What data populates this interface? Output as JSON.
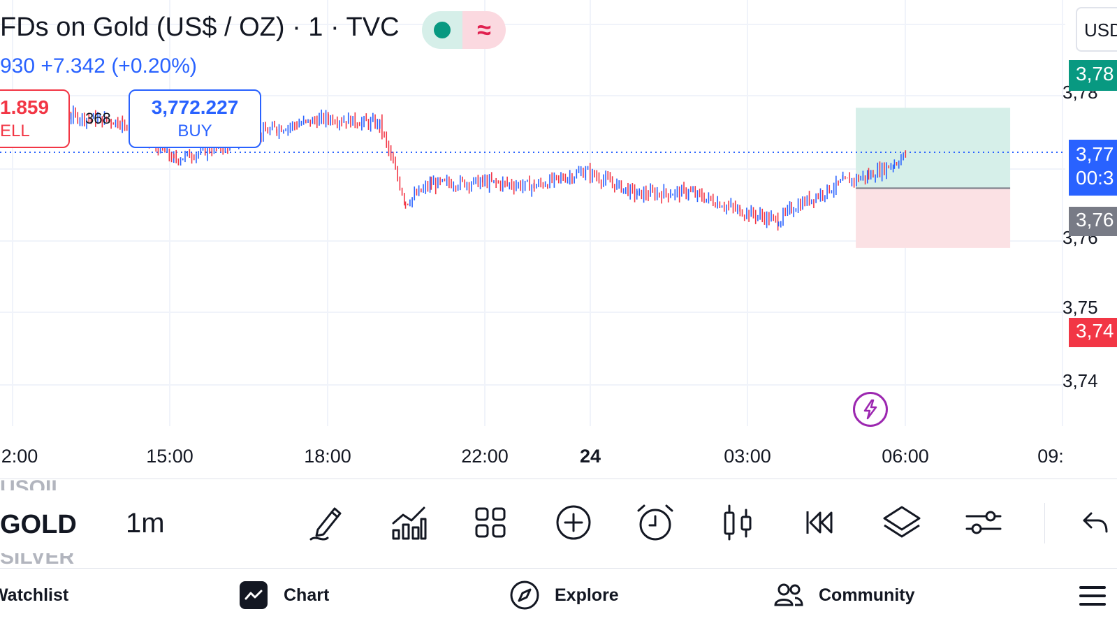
{
  "header": {
    "title": "FDs on Gold (US$ / OZ) · 1 · TVC",
    "change_text": "930 +7.342 (+0.20%)",
    "currency": "USD",
    "status_icon": "market-open-dot",
    "delayed_icon": "approx-icon"
  },
  "trade": {
    "sell_price": "1.859",
    "sell_label": "ELL",
    "spread": "368",
    "buy_price": "3,772.227",
    "buy_label": "BUY"
  },
  "price_axis": {
    "labels": [
      "3,78",
      "3,76",
      "3,75",
      "3,74"
    ],
    "tags": {
      "take_profit": "3,78",
      "current": "3,77",
      "countdown": "00:3",
      "entry": "3,76",
      "stop_loss": "3,74"
    }
  },
  "time_axis": {
    "labels": [
      "2:00",
      "15:00",
      "18:00",
      "22:00",
      "24",
      "03:00",
      "06:00",
      "09:"
    ]
  },
  "toolbar": {
    "symbol_prev": "USOIL",
    "symbol": "GOLD",
    "symbol_next": "SILVER",
    "interval": "1m",
    "tools": [
      "pencil-icon",
      "indicators-icon",
      "templates-icon",
      "add-icon",
      "alert-icon",
      "candle-type-icon",
      "replay-icon",
      "layers-icon",
      "settings-icon",
      "undo-icon"
    ]
  },
  "nav": {
    "watchlist": "Watchlist",
    "chart": "Chart",
    "explore": "Explore",
    "community": "Community"
  },
  "colors": {
    "up": "#2962ff",
    "down": "#f23645",
    "tp_zone": "#d6efe9",
    "sl_zone": "#fbe1e4",
    "accent_green": "#089981",
    "accent_blue": "#2962ff",
    "accent_red": "#f23645",
    "entry_gray": "#787b86"
  },
  "chart_data": {
    "type": "candlestick",
    "interval": "1m",
    "x": [
      "12:00",
      "13:00",
      "14:00",
      "15:00",
      "16:00",
      "17:00",
      "18:00",
      "19:00",
      "19:30",
      "20:00",
      "21:00",
      "22:00",
      "23:00",
      "00:00",
      "01:00",
      "02:00",
      "02:45",
      "03:00",
      "04:00",
      "04:30",
      "05:00",
      "05:15"
    ],
    "close": [
      3780.5,
      3781.0,
      3779.5,
      3770.5,
      3774.0,
      3778.0,
      3780.5,
      3779.0,
      3760.0,
      3764.5,
      3765.0,
      3764.0,
      3767.5,
      3762.0,
      3762.5,
      3758.0,
      3755.5,
      3758.5,
      3765.0,
      3766.5,
      3769.5,
      3772.0
    ],
    "position": {
      "take_profit": 3783.0,
      "entry": 3763.5,
      "stop_loss": 3749.0,
      "start": "04:15",
      "end": "07:15"
    },
    "current_price": 3772.2,
    "grid": true
  }
}
